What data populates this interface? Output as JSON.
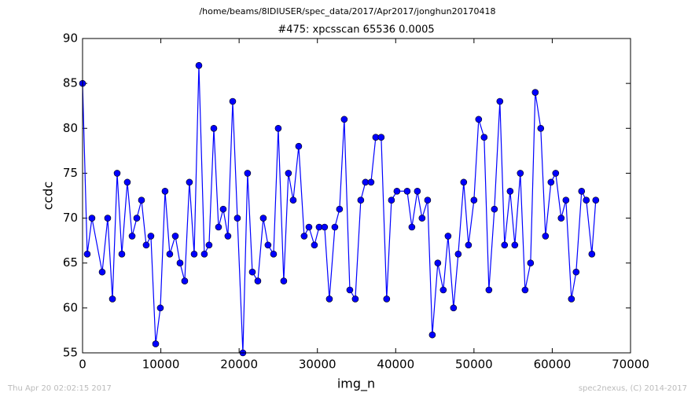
{
  "chart_data": {
    "type": "line",
    "suptitle": "/home/beams/8IDIUSER/spec_data/2017/Apr2017/jonghun20170418",
    "title": "#475: xpcsscan 65536 0.0005",
    "xlabel": "img_n",
    "ylabel": "ccdc",
    "xlim": [
      0,
      70000
    ],
    "xticks": [
      0,
      10000,
      20000,
      30000,
      40000,
      50000,
      60000,
      70000
    ],
    "ylim": [
      55,
      90
    ],
    "yticks": [
      55,
      60,
      65,
      70,
      75,
      80,
      85,
      90
    ],
    "grid": false,
    "series": [
      {
        "name": "ccdc",
        "color": "#0000ff",
        "x": [
          0,
          600,
          1200,
          2510,
          3210,
          3820,
          4420,
          5020,
          5720,
          6330,
          6930,
          7530,
          8130,
          8730,
          9340,
          9940,
          10540,
          11140,
          11850,
          12450,
          13050,
          13650,
          14260,
          14860,
          15560,
          16160,
          16770,
          17370,
          17970,
          18570,
          19180,
          19780,
          20480,
          21080,
          21690,
          22390,
          23090,
          23690,
          24400,
          25000,
          25700,
          26300,
          26910,
          27610,
          28310,
          28920,
          29620,
          30220,
          30920,
          31530,
          32230,
          32830,
          33430,
          34140,
          34840,
          35540,
          36140,
          36850,
          37450,
          38150,
          38850,
          39460,
          40160,
          41470,
          42070,
          42770,
          43370,
          44080,
          44680,
          45380,
          46080,
          46690,
          47390,
          47990,
          48690,
          49300,
          50000,
          50600,
          51300,
          51910,
          52610,
          53310,
          53910,
          54620,
          55220,
          55920,
          56530,
          57230,
          57830,
          58530,
          59140,
          59840,
          60440,
          61140,
          61750,
          62450,
          63050,
          63750,
          64350,
          65060,
          65560
        ],
        "values": [
          85,
          66,
          70,
          64,
          70,
          61,
          75,
          66,
          74,
          68,
          70,
          72,
          67,
          68,
          56,
          60,
          73,
          66,
          68,
          65,
          63,
          74,
          66,
          87,
          66,
          67,
          80,
          69,
          71,
          68,
          83,
          70,
          55,
          75,
          64,
          63,
          70,
          67,
          66,
          80,
          63,
          75,
          72,
          78,
          68,
          69,
          67,
          69,
          69,
          61,
          69,
          71,
          81,
          62,
          61,
          72,
          74,
          74,
          79,
          79,
          61,
          72,
          73,
          73,
          69,
          73,
          70,
          72,
          57,
          65,
          62,
          68,
          60,
          66,
          74,
          67,
          72,
          81,
          79,
          62,
          71,
          83,
          67,
          73,
          67,
          75,
          62,
          65,
          84,
          80,
          68,
          74,
          75,
          70,
          72,
          61,
          64,
          73,
          72,
          66,
          72
        ]
      }
    ]
  },
  "footer": {
    "left": "Thu Apr 20 02:02:15 2017",
    "right": "spec2nexus, (C) 2014-2017"
  }
}
